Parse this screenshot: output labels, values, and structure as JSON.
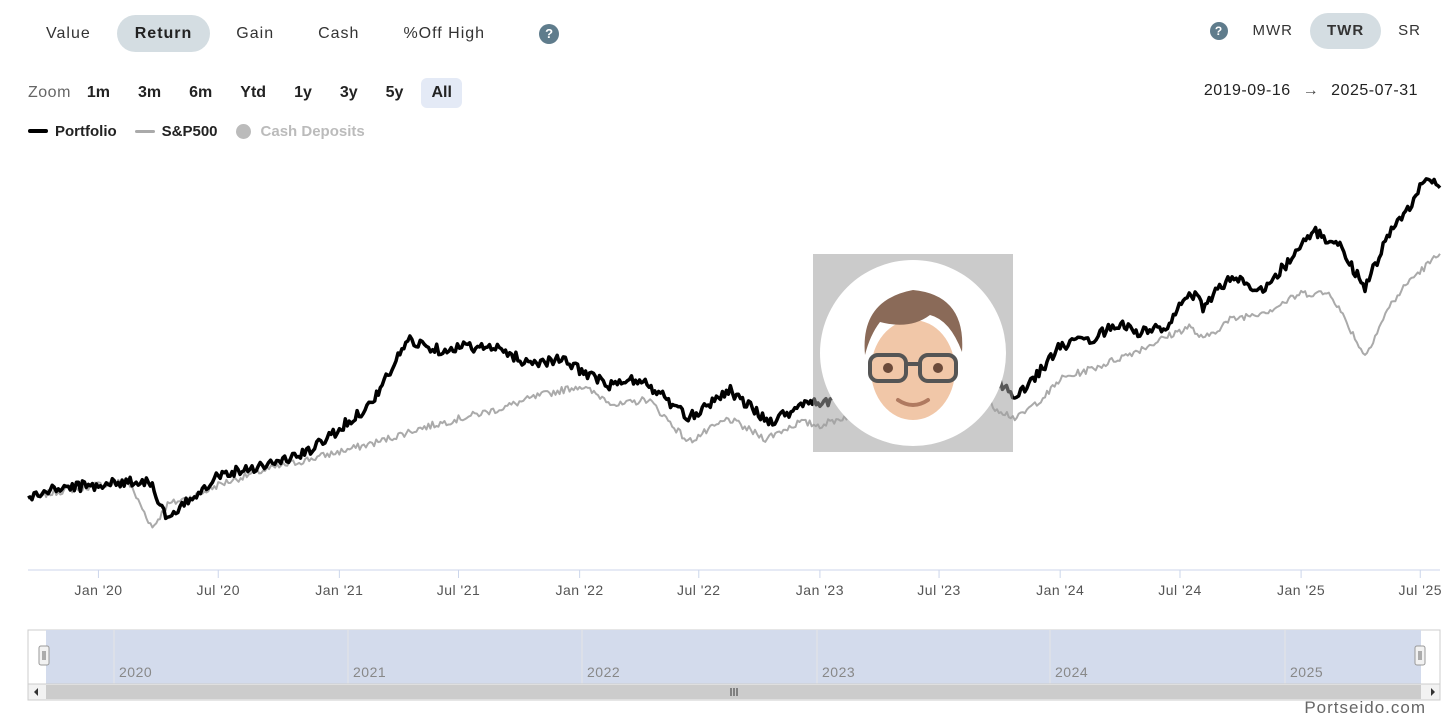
{
  "metric_tabs": [
    {
      "label": "Value",
      "active": false
    },
    {
      "label": "Return",
      "active": true
    },
    {
      "label": "Gain",
      "active": false
    },
    {
      "label": "Cash",
      "active": false
    },
    {
      "label": "%Off High",
      "active": false
    }
  ],
  "help_glyph": "?",
  "method_tabs": [
    {
      "label": "MWR",
      "active": false
    },
    {
      "label": "TWR",
      "active": true
    },
    {
      "label": "SR",
      "active": false
    }
  ],
  "zoom": {
    "label": "Zoom",
    "buttons": [
      {
        "label": "1m",
        "active": false
      },
      {
        "label": "3m",
        "active": false
      },
      {
        "label": "6m",
        "active": false
      },
      {
        "label": "Ytd",
        "active": false
      },
      {
        "label": "1y",
        "active": false
      },
      {
        "label": "3y",
        "active": false
      },
      {
        "label": "5y",
        "active": false
      },
      {
        "label": "All",
        "active": true
      }
    ]
  },
  "date_range": {
    "start": "2019-09-16",
    "arrow": "→",
    "end": "2025-07-31"
  },
  "credit": "Portseido.com",
  "colors": {
    "portfolio": "#000000",
    "benchmark": "#aaaaaa",
    "cash": "#bbbbbb",
    "navigator_fill": "#d3dbec"
  },
  "chart_data": {
    "type": "line",
    "x_ticks": [
      "Jan '20",
      "Jul '20",
      "Jan '21",
      "Jul '21",
      "Jan '22",
      "Jul '22",
      "Jan '23",
      "Jul '23",
      "Jan '24",
      "Jul '24",
      "Jan '25",
      "Jul '25"
    ],
    "x_tick_dates": [
      "2020-01-01",
      "2020-07-01",
      "2021-01-01",
      "2021-07-01",
      "2022-01-01",
      "2022-07-01",
      "2023-01-01",
      "2023-07-01",
      "2024-01-01",
      "2024-07-01",
      "2025-01-01",
      "2025-07-01"
    ],
    "x_range": [
      "2019-09-16",
      "2025-07-31"
    ],
    "y_axis_visible": false,
    "grid": false,
    "legend_position": "top-left",
    "navigator_years": [
      "2020",
      "2021",
      "2022",
      "2023",
      "2024",
      "2025"
    ],
    "series": [
      {
        "name": "Portfolio",
        "x": [
          "2019-09-16",
          "2019-11-01",
          "2020-01-01",
          "2020-02-15",
          "2020-03-20",
          "2020-04-15",
          "2020-06-01",
          "2020-07-01",
          "2020-08-15",
          "2020-10-01",
          "2020-11-15",
          "2021-01-01",
          "2021-02-15",
          "2021-03-10",
          "2021-04-15",
          "2021-06-01",
          "2021-07-15",
          "2021-09-01",
          "2021-10-15",
          "2021-12-01",
          "2022-01-01",
          "2022-02-15",
          "2022-03-30",
          "2022-05-01",
          "2022-06-15",
          "2022-08-15",
          "2022-10-15",
          "2022-11-15",
          "2022-12-15",
          "2023-01-01",
          "2023-02-01",
          "2023-03-15",
          "2023-05-01",
          "2023-07-01",
          "2023-08-01",
          "2023-09-01",
          "2023-10-27",
          "2023-12-15",
          "2024-01-01",
          "2024-02-15",
          "2024-03-30",
          "2024-05-01",
          "2024-06-15",
          "2024-07-15",
          "2024-08-05",
          "2024-09-15",
          "2024-11-01",
          "2024-12-15",
          "2025-01-20",
          "2025-03-01",
          "2025-04-08",
          "2025-05-15",
          "2025-06-15",
          "2025-07-10",
          "2025-07-31"
        ],
        "y": [
          0,
          3,
          4,
          5,
          5,
          -7,
          2,
          7,
          9,
          11,
          14,
          21,
          28,
          35,
          48,
          45,
          46,
          45,
          41,
          42,
          39,
          34,
          36,
          32,
          24,
          33,
          23,
          26,
          30,
          27,
          33,
          37,
          41,
          44,
          45,
          40,
          30,
          42,
          46,
          48,
          53,
          50,
          52,
          63,
          58,
          67,
          63,
          72,
          81,
          76,
          64,
          80,
          88,
          98,
          94
        ]
      },
      {
        "name": "S&P500",
        "x": [
          "2019-09-16",
          "2019-11-01",
          "2020-01-01",
          "2020-02-15",
          "2020-03-23",
          "2020-04-15",
          "2020-06-01",
          "2020-07-01",
          "2020-09-01",
          "2020-11-01",
          "2021-01-01",
          "2021-03-01",
          "2021-05-01",
          "2021-07-01",
          "2021-09-01",
          "2021-11-01",
          "2022-01-01",
          "2022-03-01",
          "2022-04-15",
          "2022-06-15",
          "2022-08-15",
          "2022-10-10",
          "2022-12-01",
          "2023-01-01",
          "2023-03-01",
          "2023-05-01",
          "2023-07-01",
          "2023-08-01",
          "2023-10-27",
          "2023-12-15",
          "2024-01-01",
          "2024-03-01",
          "2024-05-01",
          "2024-07-15",
          "2024-08-05",
          "2024-09-15",
          "2024-11-15",
          "2025-01-01",
          "2025-02-15",
          "2025-04-08",
          "2025-05-15",
          "2025-06-15",
          "2025-07-31"
        ],
        "y": [
          0,
          2,
          4,
          5,
          -9,
          -2,
          1,
          4,
          8,
          11,
          14,
          17,
          21,
          24,
          27,
          31,
          34,
          28,
          30,
          17,
          24,
          18,
          23,
          22,
          26,
          26,
          31,
          33,
          24,
          32,
          36,
          40,
          45,
          52,
          48,
          54,
          57,
          62,
          62,
          43,
          58,
          66,
          74
        ]
      }
    ]
  }
}
